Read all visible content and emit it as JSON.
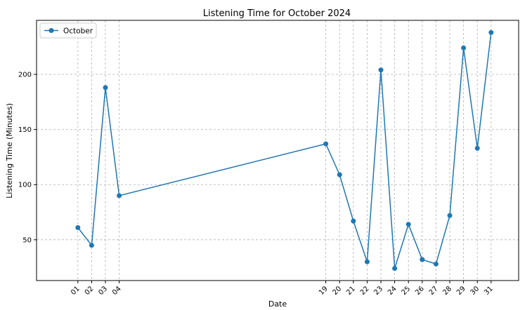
{
  "chart_data": {
    "type": "line",
    "title": "Listening Time for October 2024",
    "xlabel": "Date",
    "ylabel": "Listening Time (Minutes)",
    "x": [
      "2024-10-01",
      "2024-10-02",
      "2024-10-03",
      "2024-10-04",
      "2024-10-19",
      "2024-10-20",
      "2024-10-21",
      "2024-10-22",
      "2024-10-23",
      "2024-10-24",
      "2024-10-25",
      "2024-10-26",
      "2024-10-27",
      "2024-10-28",
      "2024-10-29",
      "2024-10-30",
      "2024-10-31"
    ],
    "x_tick_labels": [
      "01",
      "02",
      "03",
      "04",
      "19",
      "20",
      "21",
      "22",
      "23",
      "24",
      "25",
      "26",
      "27",
      "28",
      "29",
      "30",
      "31"
    ],
    "series": [
      {
        "name": "October",
        "color": "#1f77b4",
        "marker": "circle",
        "values": [
          61,
          45,
          188,
          90,
          137,
          109,
          67,
          30,
          204,
          24,
          64,
          32,
          28,
          72,
          224,
          133,
          238
        ]
      }
    ],
    "xlim": [
      "2024-09-28",
      "2024-11-02"
    ],
    "ylim": [
      13,
      249
    ],
    "y_ticks": [
      50,
      100,
      150,
      200
    ],
    "grid": true,
    "legend": {
      "placement": "top-left"
    }
  }
}
